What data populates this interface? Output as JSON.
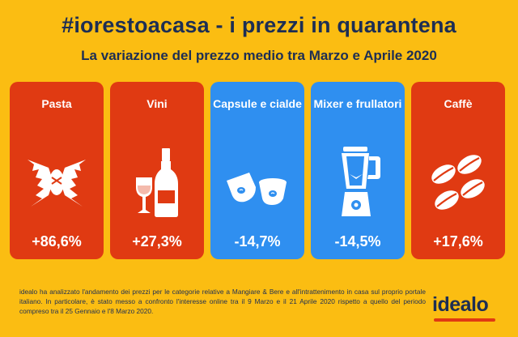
{
  "header": {
    "title": "#iorestoacasa - i prezzi in quarantena",
    "subtitle": "La variazione del prezzo medio tra Marzo e Aprile 2020"
  },
  "colors": {
    "background": "#fbbd12",
    "red_card": "#e03a12",
    "blue_card": "#2f8ff0",
    "navy_text": "#1d2e54"
  },
  "cards": [
    {
      "label": "Pasta",
      "value": "+86,6%",
      "icon": "pasta-farfalle-icon",
      "color": "red"
    },
    {
      "label": "Vini",
      "value": "+27,3%",
      "icon": "wine-bottle-icon",
      "color": "red"
    },
    {
      "label": "Capsule e cialde",
      "value": "-14,7%",
      "icon": "coffee-capsule-icon",
      "color": "blue"
    },
    {
      "label": "Mixer e frullatori",
      "value": "-14,5%",
      "icon": "blender-icon",
      "color": "blue"
    },
    {
      "label": "Caffè",
      "value": "+17,6%",
      "icon": "coffee-beans-icon",
      "color": "red"
    }
  ],
  "footer": {
    "text": "idealo ha analizzato l'andamento dei prezzi per le categorie relative a Mangiare & Bere e all'intrattenimento in casa sul proprio portale italiano. In particolare, è stato messo a confronto l'interesse online tra il 9 Marzo e il 21 Aprile 2020 rispetto a quello del periodo compreso tra il 25 Gennaio e l'8 Marzo 2020."
  },
  "brand": {
    "logo": "idealo"
  }
}
